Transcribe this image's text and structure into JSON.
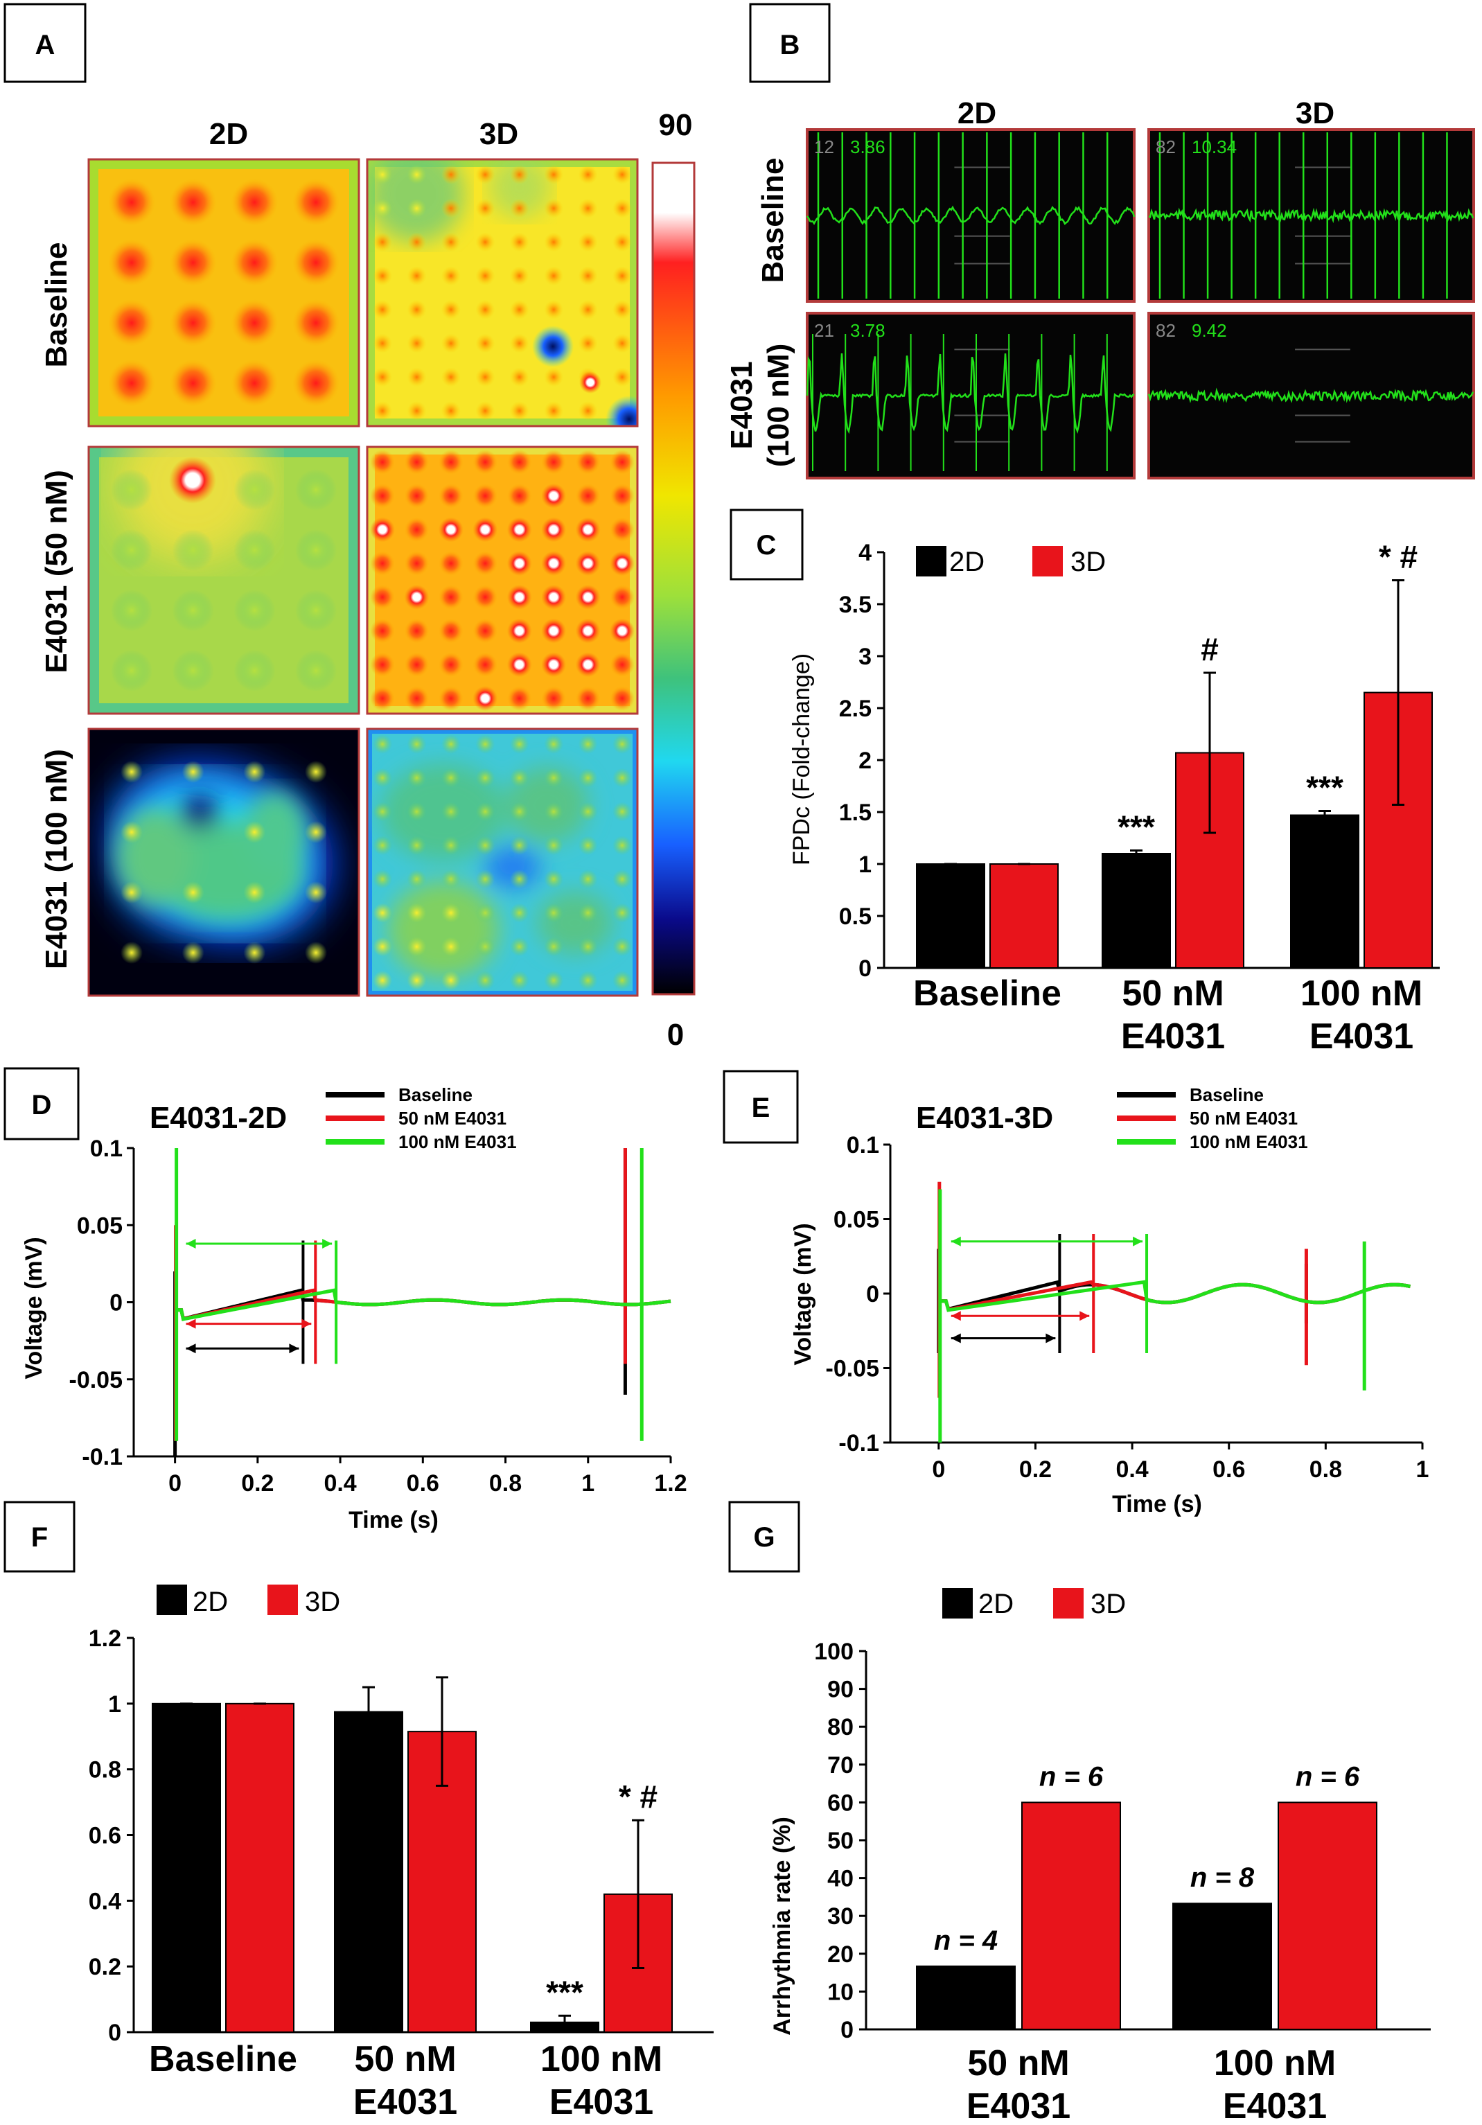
{
  "colors": {
    "d2": "#000000",
    "d3": "#e8141b",
    "green": "#22e01a",
    "frame": "#b33a3a",
    "ecgbg": "#050505"
  },
  "panel_labels": {
    "a": "A",
    "b": "B",
    "c": "C",
    "d": "D",
    "e": "E",
    "f": "F",
    "g": "G"
  },
  "panelA": {
    "col_2d": "2D",
    "col_3d": "3D",
    "row_baseline": "Baseline",
    "row_50": "E4031 (50 nM)",
    "row_100": "E4031 (100 nM)",
    "scale_max": "90",
    "scale_min": "0"
  },
  "panelB": {
    "col_2d": "2D",
    "col_3d": "3D",
    "row_baseline": "Baseline",
    "row_e4031_a": "E4031",
    "row_e4031_b": "(100 nM)",
    "tiles": [
      {
        "ch": "12",
        "val": "3.86"
      },
      {
        "ch": "82",
        "val": "10.34"
      },
      {
        "ch": "21",
        "val": "3.78"
      },
      {
        "ch": "82",
        "val": "9.42"
      }
    ]
  },
  "chart_data": [
    {
      "panel": "C",
      "type": "bar",
      "categories": [
        "Baseline",
        "50 nM E4031",
        "100 nM E4031"
      ],
      "cat_lines": [
        [
          "Baseline"
        ],
        [
          "50 nM",
          "E4031"
        ],
        [
          "100 nM",
          "E4031"
        ]
      ],
      "series": [
        {
          "name": "2D",
          "values": [
            1.0,
            1.1,
            1.47
          ],
          "errors": [
            0,
            0.03,
            0.04
          ],
          "sig": [
            "",
            "***",
            "***"
          ]
        },
        {
          "name": "3D",
          "values": [
            1.0,
            2.07,
            2.65
          ],
          "errors": [
            0,
            0.77,
            1.08
          ],
          "sig": [
            "",
            "#",
            "* #"
          ]
        }
      ],
      "ylabel": "FPDc (Fold-change)",
      "ylim": [
        0,
        4
      ],
      "yticks": [
        "0",
        "0.5",
        "1",
        "1.5",
        "2",
        "2.5",
        "3",
        "3.5",
        "4"
      ]
    },
    {
      "panel": "D",
      "type": "line",
      "title": "E4031-2D",
      "xlabel": "Time (s)",
      "ylabel": "Voltage (mV)",
      "xlim": [
        -0.1,
        1.2
      ],
      "ylim": [
        -0.1,
        0.1
      ],
      "xticks": [
        "0",
        "0.2",
        "0.4",
        "0.6",
        "0.8",
        "1",
        "1.2"
      ],
      "yticks": [
        "0.1",
        "0.05",
        "0",
        "-0.05",
        "-0.1"
      ],
      "series": [
        {
          "name": "Baseline"
        },
        {
          "name": "50 nM E4031"
        },
        {
          "name": "100 nM E4031"
        }
      ],
      "fpd_end_s": [
        0.31,
        0.34,
        0.39
      ]
    },
    {
      "panel": "E",
      "type": "line",
      "title": "E4031-3D",
      "xlabel": "Time (s)",
      "ylabel": "Voltage (mV)",
      "xlim": [
        -0.1,
        1.0
      ],
      "ylim": [
        -0.1,
        0.1
      ],
      "xticks": [
        "0",
        "0.2",
        "0.4",
        "0.6",
        "0.8",
        "1"
      ],
      "yticks": [
        "0.1",
        "0.05",
        "0",
        "-0.05",
        "-0.1"
      ],
      "series": [
        {
          "name": "Baseline"
        },
        {
          "name": "50 nM E4031"
        },
        {
          "name": "100 nM E4031"
        }
      ],
      "fpd_end_s": [
        0.25,
        0.32,
        0.43
      ]
    },
    {
      "panel": "F",
      "type": "bar",
      "categories": [
        "Baseline",
        "50 nM E4031",
        "100 nM E4031"
      ],
      "cat_lines": [
        [
          "Baseline"
        ],
        [
          "50 nM",
          "E4031"
        ],
        [
          "100 nM",
          "E4031"
        ]
      ],
      "series": [
        {
          "name": "2D",
          "values": [
            1.0,
            0.975,
            0.03
          ],
          "errors": [
            0,
            0.075,
            0.02
          ],
          "sig": [
            "",
            "",
            "***"
          ]
        },
        {
          "name": "3D",
          "values": [
            1.0,
            0.915,
            0.42
          ],
          "errors": [
            0,
            0.165,
            0.225
          ],
          "sig": [
            "",
            "",
            "* #"
          ]
        }
      ],
      "ylim": [
        0,
        1.2
      ],
      "yticks": [
        "0",
        "0.2",
        "0.4",
        "0.6",
        "0.8",
        "1",
        "1.2"
      ]
    },
    {
      "panel": "G",
      "type": "bar",
      "categories": [
        "50 nM E4031",
        "100 nM E4031"
      ],
      "cat_lines": [
        [
          "50 nM",
          "E4031"
        ],
        [
          "100 nM",
          "E4031"
        ]
      ],
      "series": [
        {
          "name": "2D",
          "values": [
            16.7,
            33.3
          ],
          "labels": [
            "n = 4",
            "n = 8"
          ]
        },
        {
          "name": "3D",
          "values": [
            60,
            60
          ],
          "labels": [
            "n = 6",
            "n = 6"
          ]
        }
      ],
      "ylabel": "Arrhythmia rate (%)",
      "ylim": [
        0,
        100
      ],
      "yticks": [
        "0",
        "10",
        "20",
        "30",
        "40",
        "50",
        "60",
        "70",
        "80",
        "90",
        "100"
      ]
    }
  ]
}
